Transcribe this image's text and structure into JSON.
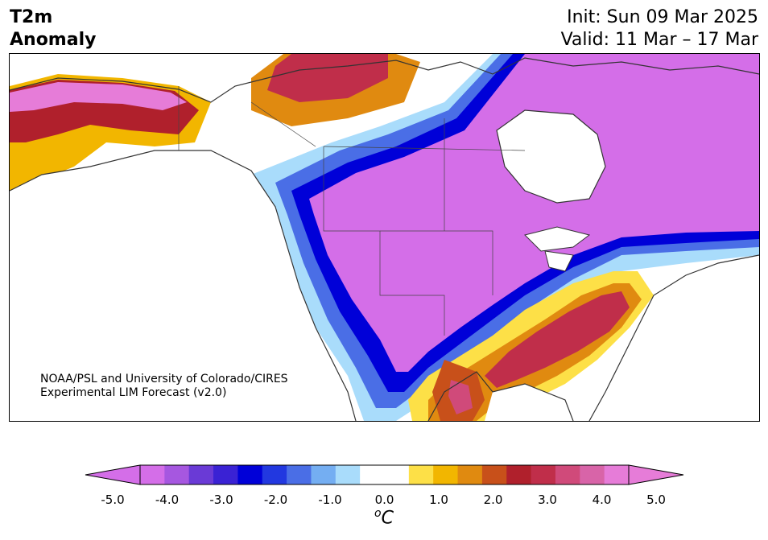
{
  "header": {
    "title_line1": "T2m",
    "title_line2": "Anomaly",
    "init": "Init: Sun 09 Mar 2025",
    "valid": "Valid: 11 Mar – 17 Mar"
  },
  "map": {
    "region": "North America",
    "credit_line1": "NOAA/PSL and University of Colorado/CIRES",
    "credit_line2": "Experimental LIM Forecast (v2.0)"
  },
  "colorbar": {
    "unit_text": "C",
    "unit_superscript": "o",
    "tick_labels": [
      "-5.0",
      "-4.0",
      "-3.0",
      "-2.0",
      "-1.0",
      "0.0",
      "1.0",
      "2.0",
      "3.0",
      "4.0",
      "5.0"
    ],
    "colors": [
      "#d46ee8",
      "#a657e0",
      "#6a3ad6",
      "#3a22d4",
      "#0000d8",
      "#2238e0",
      "#4a6ee6",
      "#74aef2",
      "#a9dcfb",
      "#ffffff",
      "#ffffff",
      "#fde047",
      "#f2b600",
      "#e08a10",
      "#c8501a",
      "#b0202c",
      "#c02e4a",
      "#d04a7a",
      "#d864a8",
      "#e67cd8"
    ],
    "extend_low_color": "#d46ee8",
    "extend_high_color": "#e67cd8"
  }
}
